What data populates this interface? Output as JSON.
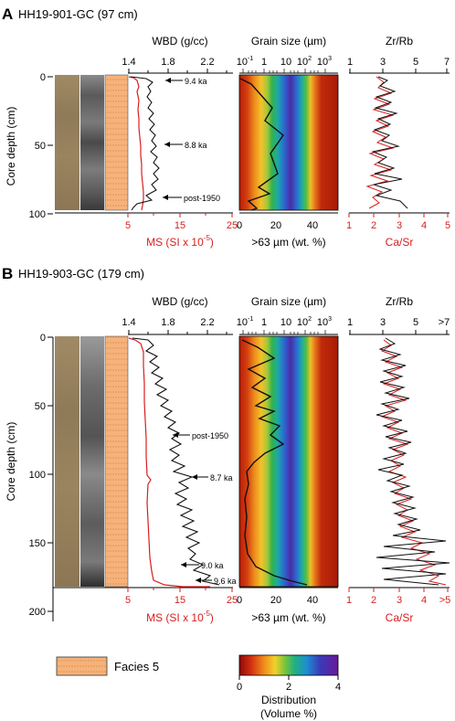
{
  "panels": [
    {
      "letter": "A",
      "title": "HH19-901-GC (97 cm)",
      "depth_label": "Core depth (cm)",
      "depth_ticks": [
        "0",
        "50",
        "100"
      ],
      "wbd_label": "WBD (g/cc)",
      "wbd_ticks": [
        "1.4",
        "1.8",
        "2.2"
      ],
      "ms_label": "MS (SI x 10",
      "ms_exp": "-5",
      "ms_close": ")",
      "ms_ticks": [
        "5",
        "15",
        "25"
      ],
      "gs_label": "Grain size (µm)",
      "gs_ticks": [
        "10",
        "1",
        "10",
        "10",
        "10"
      ],
      "gs_exps": [
        "-1",
        "",
        "",
        "2",
        "3"
      ],
      "coarse_label": ">63 µm (wt. %)",
      "coarse_ticks": [
        "0",
        "20",
        "40"
      ],
      "zr_label": "Zr/Rb",
      "zr_ticks": [
        "1",
        "3",
        "5",
        "7"
      ],
      "ca_label": "Ca/Sr",
      "ca_ticks": [
        "1",
        "2",
        "3",
        "4",
        "5"
      ],
      "ages": [
        "9.4 ka",
        "8.8 ka",
        "post-1950"
      ]
    },
    {
      "letter": "B",
      "title": "HH19-903-GC (179 cm)",
      "depth_label": "Core depth (cm)",
      "depth_ticks": [
        "0",
        "50",
        "100",
        "150",
        "200"
      ],
      "wbd_label": "WBD (g/cc)",
      "wbd_ticks": [
        "1.4",
        "1.8",
        "2.2"
      ],
      "ms_label": "MS (SI x 10",
      "ms_exp": "-5",
      "ms_close": ")",
      "ms_ticks": [
        "5",
        "15",
        "25"
      ],
      "gs_label": "Grain size (µm)",
      "gs_ticks": [
        "10",
        "1",
        "10",
        "10",
        "10"
      ],
      "gs_exps": [
        "-1",
        "",
        "",
        "2",
        "3"
      ],
      "coarse_label": ">63 µm (wt. %)",
      "coarse_ticks": [
        "0",
        "20",
        "40"
      ],
      "zr_label": "Zr/Rb",
      "zr_ticks": [
        "1",
        "3",
        "5",
        ">7"
      ],
      "ca_label": "Ca/Sr",
      "ca_ticks": [
        "1",
        "2",
        "3",
        "4",
        ">5"
      ],
      "ages": [
        "post-1950",
        "8.7 ka",
        "9.0 ka",
        "9.6 ka"
      ]
    }
  ],
  "legend": {
    "facies_label": "Facies 5",
    "colorbar_ticks": [
      "0",
      "2",
      "4"
    ],
    "colorbar_title": "Distribution",
    "colorbar_subtitle": "(Volume %)"
  },
  "colors": {
    "wbd_line": "#111111",
    "ms_line": "#d81e1e",
    "facies_fill": "#f6b27a",
    "core_photo": "#9a8462"
  }
}
